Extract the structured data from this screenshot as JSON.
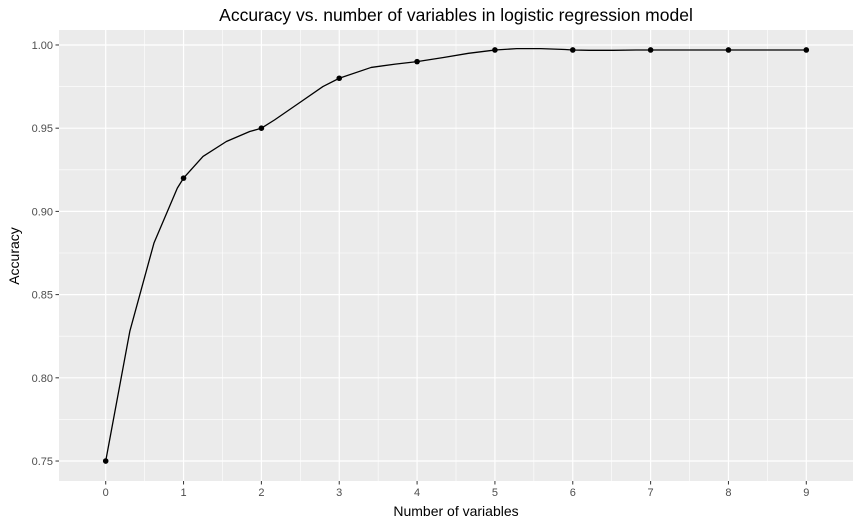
{
  "chart_data": {
    "type": "line",
    "title": "Accuracy vs. number of variables in logistic regression model",
    "xlabel": "Number of variables",
    "ylabel": "Accuracy",
    "xlim": [
      -0.6,
      9.6
    ],
    "ylim": [
      0.738,
      1.009
    ],
    "x_ticks": [
      0,
      1,
      2,
      3,
      4,
      5,
      6,
      7,
      8,
      9
    ],
    "x_tick_labels": [
      "0",
      "1",
      "2",
      "3",
      "4",
      "5",
      "6",
      "7",
      "8",
      "9"
    ],
    "y_ticks": [
      0.75,
      0.8,
      0.85,
      0.9,
      0.95,
      1.0
    ],
    "y_tick_labels": [
      "0.75",
      "0.80",
      "0.85",
      "0.90",
      "0.95",
      "1.00"
    ],
    "grid": true,
    "legend": "none",
    "points": {
      "x": [
        0,
        1,
        2,
        3,
        4,
        5,
        6,
        7,
        8,
        9
      ],
      "y": [
        0.75,
        0.92,
        0.95,
        0.98,
        0.99,
        0.997,
        0.997,
        0.997,
        0.997,
        0.997
      ]
    },
    "smooth_line": {
      "x": [
        0,
        0.31,
        0.62,
        0.92,
        1.0,
        1.25,
        1.55,
        1.85,
        2.0,
        2.17,
        2.48,
        2.79,
        3.0,
        3.41,
        3.72,
        4.0,
        4.34,
        4.66,
        4.97,
        5.0,
        5.28,
        5.59,
        5.9,
        6.0,
        6.21,
        6.52,
        6.83,
        7.0,
        7.14,
        7.45,
        7.76,
        8.0,
        8.07,
        8.38,
        8.69,
        9.0
      ],
      "y": [
        0.75,
        0.828,
        0.881,
        0.914,
        0.92,
        0.933,
        0.942,
        0.948,
        0.95,
        0.955,
        0.965,
        0.975,
        0.98,
        0.9865,
        0.9885,
        0.99,
        0.9925,
        0.995,
        0.9968,
        0.997,
        0.9978,
        0.9978,
        0.9973,
        0.997,
        0.9968,
        0.9968,
        0.997,
        0.997,
        0.997,
        0.997,
        0.997,
        0.997,
        0.997,
        0.997,
        0.997,
        0.997
      ]
    },
    "colors": {
      "panel": "#ebebeb",
      "grid_major": "#ffffff",
      "line": "#000000",
      "point": "#000000"
    }
  }
}
